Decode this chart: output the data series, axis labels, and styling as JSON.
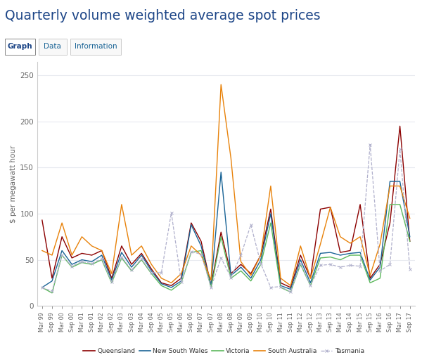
{
  "title": "Quarterly volume weighted average spot prices",
  "ylabel": "$ per megawatt hour",
  "background_color": "#ffffff",
  "plot_background": "#ffffff",
  "title_color": "#1c4587",
  "axis_color": "#cccccc",
  "grid_color": "#e8eaf0",
  "tab_labels": [
    "Graph",
    "Data",
    "Information"
  ],
  "legend": {
    "Queensland": "#8B0000",
    "New South Wales": "#1a6496",
    "Victoria": "#5cb85c",
    "South Australia": "#e8820a",
    "Tasmania": "#b0b0cc"
  },
  "quarters": [
    "Mar 99",
    "Sep 99",
    "Mar 00",
    "Sep 00",
    "Mar 01",
    "Sep 01",
    "Mar 02",
    "Sep 02",
    "Mar 03",
    "Sep 03",
    "Mar 04",
    "Sep 04",
    "Mar 05",
    "Sep 05",
    "Mar 06",
    "Sep 06",
    "Mar 07",
    "Sep 07",
    "Mar 08",
    "Sep 08",
    "Mar 09",
    "Sep 09",
    "Mar 10",
    "Sep 10",
    "Mar 11",
    "Sep 11",
    "Mar 12",
    "Sep 12",
    "Mar 13",
    "Sep 13",
    "Mar 14",
    "Sep 14",
    "Mar 15",
    "Sep 15",
    "Mar 16",
    "Sep 16",
    "Mar 17",
    "Sep 17"
  ],
  "Queensland": [
    93,
    30,
    75,
    52,
    57,
    55,
    60,
    30,
    65,
    45,
    57,
    40,
    25,
    22,
    30,
    90,
    70,
    22,
    80,
    35,
    45,
    35,
    55,
    105,
    25,
    20,
    55,
    30,
    105,
    107,
    58,
    60,
    110,
    30,
    45,
    90,
    195,
    70
  ],
  "New South Wales": [
    20,
    27,
    60,
    45,
    50,
    48,
    55,
    28,
    58,
    42,
    55,
    38,
    24,
    20,
    27,
    88,
    65,
    22,
    145,
    33,
    42,
    30,
    50,
    100,
    22,
    18,
    50,
    25,
    57,
    58,
    55,
    57,
    58,
    28,
    42,
    135,
    135,
    75
  ],
  "Victoria": [
    20,
    14,
    55,
    42,
    47,
    45,
    50,
    25,
    52,
    38,
    50,
    35,
    22,
    17,
    25,
    58,
    60,
    20,
    75,
    30,
    38,
    27,
    45,
    90,
    20,
    15,
    45,
    22,
    52,
    53,
    50,
    55,
    55,
    25,
    30,
    110,
    110,
    70
  ],
  "South Australia": [
    60,
    55,
    90,
    55,
    75,
    65,
    60,
    35,
    110,
    55,
    65,
    45,
    30,
    25,
    35,
    65,
    55,
    28,
    240,
    160,
    48,
    33,
    55,
    130,
    30,
    22,
    65,
    30,
    67,
    107,
    75,
    68,
    75,
    33,
    67,
    130,
    130,
    95
  ],
  "Tasmania": [
    20,
    16,
    55,
    43,
    48,
    46,
    51,
    26,
    53,
    39,
    51,
    36,
    36,
    101,
    26,
    59,
    56,
    20,
    52,
    31,
    55,
    88,
    46,
    20,
    21,
    15,
    46,
    22,
    44,
    45,
    42,
    44,
    43,
    175,
    38,
    45,
    170,
    40
  ]
}
